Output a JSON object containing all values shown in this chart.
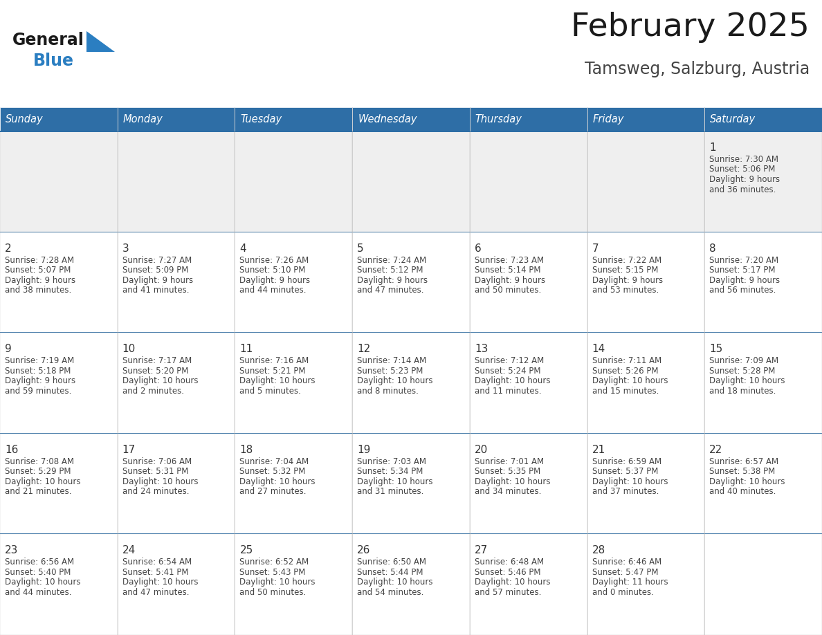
{
  "title": "February 2025",
  "subtitle": "Tamsweg, Salzburg, Austria",
  "header_bg": "#2E6EA6",
  "header_text_color": "#FFFFFF",
  "border_color": "#2E6EA6",
  "row_sep_color": "#2E6EA6",
  "day_headers": [
    "Sunday",
    "Monday",
    "Tuesday",
    "Wednesday",
    "Thursday",
    "Friday",
    "Saturday"
  ],
  "title_color": "#1a1a1a",
  "subtitle_color": "#444444",
  "day_num_color": "#333333",
  "text_color": "#444444",
  "logo_general_color": "#1a1a1a",
  "logo_blue_color": "#2B7EC1",
  "cell_bg_gray": "#EFEFEF",
  "cell_bg_white": "#FFFFFF",
  "calendar_data": {
    "1": {
      "sunrise": "7:30 AM",
      "sunset": "5:06 PM",
      "daylight_h": "9",
      "daylight_m": "36"
    },
    "2": {
      "sunrise": "7:28 AM",
      "sunset": "5:07 PM",
      "daylight_h": "9",
      "daylight_m": "38"
    },
    "3": {
      "sunrise": "7:27 AM",
      "sunset": "5:09 PM",
      "daylight_h": "9",
      "daylight_m": "41"
    },
    "4": {
      "sunrise": "7:26 AM",
      "sunset": "5:10 PM",
      "daylight_h": "9",
      "daylight_m": "44"
    },
    "5": {
      "sunrise": "7:24 AM",
      "sunset": "5:12 PM",
      "daylight_h": "9",
      "daylight_m": "47"
    },
    "6": {
      "sunrise": "7:23 AM",
      "sunset": "5:14 PM",
      "daylight_h": "9",
      "daylight_m": "50"
    },
    "7": {
      "sunrise": "7:22 AM",
      "sunset": "5:15 PM",
      "daylight_h": "9",
      "daylight_m": "53"
    },
    "8": {
      "sunrise": "7:20 AM",
      "sunset": "5:17 PM",
      "daylight_h": "9",
      "daylight_m": "56"
    },
    "9": {
      "sunrise": "7:19 AM",
      "sunset": "5:18 PM",
      "daylight_h": "9",
      "daylight_m": "59"
    },
    "10": {
      "sunrise": "7:17 AM",
      "sunset": "5:20 PM",
      "daylight_h": "10",
      "daylight_m": "2"
    },
    "11": {
      "sunrise": "7:16 AM",
      "sunset": "5:21 PM",
      "daylight_h": "10",
      "daylight_m": "5"
    },
    "12": {
      "sunrise": "7:14 AM",
      "sunset": "5:23 PM",
      "daylight_h": "10",
      "daylight_m": "8"
    },
    "13": {
      "sunrise": "7:12 AM",
      "sunset": "5:24 PM",
      "daylight_h": "10",
      "daylight_m": "11"
    },
    "14": {
      "sunrise": "7:11 AM",
      "sunset": "5:26 PM",
      "daylight_h": "10",
      "daylight_m": "15"
    },
    "15": {
      "sunrise": "7:09 AM",
      "sunset": "5:28 PM",
      "daylight_h": "10",
      "daylight_m": "18"
    },
    "16": {
      "sunrise": "7:08 AM",
      "sunset": "5:29 PM",
      "daylight_h": "10",
      "daylight_m": "21"
    },
    "17": {
      "sunrise": "7:06 AM",
      "sunset": "5:31 PM",
      "daylight_h": "10",
      "daylight_m": "24"
    },
    "18": {
      "sunrise": "7:04 AM",
      "sunset": "5:32 PM",
      "daylight_h": "10",
      "daylight_m": "27"
    },
    "19": {
      "sunrise": "7:03 AM",
      "sunset": "5:34 PM",
      "daylight_h": "10",
      "daylight_m": "31"
    },
    "20": {
      "sunrise": "7:01 AM",
      "sunset": "5:35 PM",
      "daylight_h": "10",
      "daylight_m": "34"
    },
    "21": {
      "sunrise": "6:59 AM",
      "sunset": "5:37 PM",
      "daylight_h": "10",
      "daylight_m": "37"
    },
    "22": {
      "sunrise": "6:57 AM",
      "sunset": "5:38 PM",
      "daylight_h": "10",
      "daylight_m": "40"
    },
    "23": {
      "sunrise": "6:56 AM",
      "sunset": "5:40 PM",
      "daylight_h": "10",
      "daylight_m": "44"
    },
    "24": {
      "sunrise": "6:54 AM",
      "sunset": "5:41 PM",
      "daylight_h": "10",
      "daylight_m": "47"
    },
    "25": {
      "sunrise": "6:52 AM",
      "sunset": "5:43 PM",
      "daylight_h": "10",
      "daylight_m": "50"
    },
    "26": {
      "sunrise": "6:50 AM",
      "sunset": "5:44 PM",
      "daylight_h": "10",
      "daylight_m": "54"
    },
    "27": {
      "sunrise": "6:48 AM",
      "sunset": "5:46 PM",
      "daylight_h": "10",
      "daylight_m": "57"
    },
    "28": {
      "sunrise": "6:46 AM",
      "sunset": "5:47 PM",
      "daylight_h": "11",
      "daylight_m": "0"
    }
  },
  "week_layout": [
    [
      null,
      null,
      null,
      null,
      null,
      null,
      1
    ],
    [
      2,
      3,
      4,
      5,
      6,
      7,
      8
    ],
    [
      9,
      10,
      11,
      12,
      13,
      14,
      15
    ],
    [
      16,
      17,
      18,
      19,
      20,
      21,
      22
    ],
    [
      23,
      24,
      25,
      26,
      27,
      28,
      null
    ]
  ]
}
